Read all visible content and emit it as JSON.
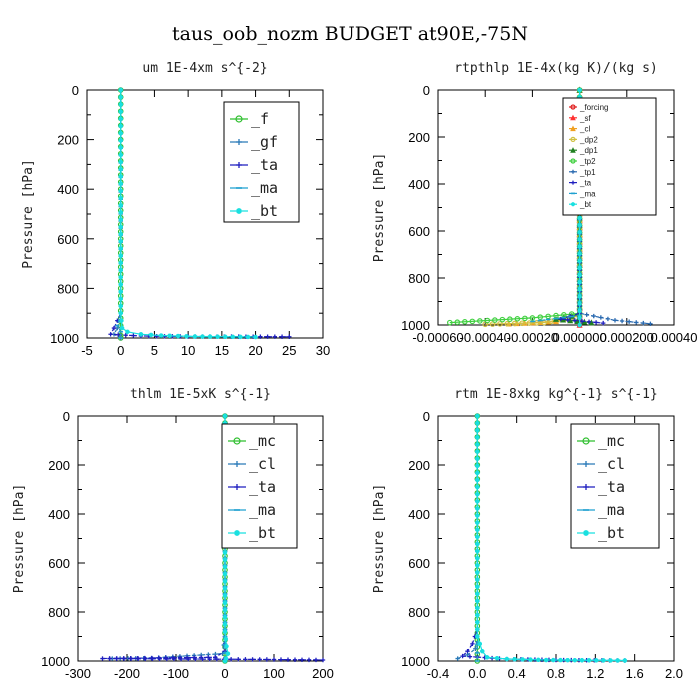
{
  "figure_title": "taus_oob_nozm  BUDGET at90E,-75N",
  "chart_data": [
    {
      "type": "line",
      "title": "um   1E-4xm  s^{-2}",
      "ylabel": "Pressure [hPa]",
      "xlim": [
        -5,
        30
      ],
      "ylim": [
        1000,
        0
      ],
      "x_ticks": [
        -5,
        0,
        5,
        10,
        15,
        20,
        25,
        30
      ],
      "x_tick_labels": [
        "-5",
        "0",
        "5",
        "10",
        "15",
        "20",
        "25",
        "30"
      ],
      "y_ticks": [
        0,
        200,
        400,
        600,
        800,
        1000
      ],
      "legend_style": "big",
      "legend_position": "top-right",
      "series": [
        {
          "name": "_f",
          "color": "#2fbf2f",
          "marker": "circle",
          "points": [
            [
              0,
              0
            ],
            [
              0,
              200
            ],
            [
              0,
              400
            ],
            [
              0,
              600
            ],
            [
              0,
              800
            ],
            [
              0,
              950
            ],
            [
              0,
              990
            ],
            [
              0,
              1000
            ]
          ]
        },
        {
          "name": "_gf",
          "color": "#2a7ab8",
          "marker": "plus",
          "points": [
            [
              0,
              0
            ],
            [
              0,
              500
            ],
            [
              0,
              900
            ],
            [
              -0.5,
              960
            ],
            [
              -1,
              985
            ],
            [
              0,
              1000
            ]
          ]
        },
        {
          "name": "_ta",
          "color": "#1f1fbf",
          "marker": "plus",
          "points": [
            [
              0,
              0
            ],
            [
              0,
              900
            ],
            [
              -1,
              960
            ],
            [
              -1.5,
              985
            ],
            [
              3,
              992
            ],
            [
              10,
              994
            ],
            [
              25,
              995
            ]
          ]
        },
        {
          "name": "_ma",
          "color": "#1fa0d0",
          "marker": "dash",
          "points": [
            [
              0,
              0
            ],
            [
              0,
              900
            ],
            [
              -0.5,
              950
            ],
            [
              0,
              975
            ],
            [
              0,
              1000
            ]
          ]
        },
        {
          "name": "_bt",
          "color": "#19e0e0",
          "marker": "star",
          "points": [
            [
              0,
              0
            ],
            [
              0,
              900
            ],
            [
              0.2,
              960
            ],
            [
              1,
              975
            ],
            [
              3,
              985
            ],
            [
              6,
              990
            ],
            [
              11,
              994
            ],
            [
              20,
              996
            ]
          ]
        }
      ]
    },
    {
      "type": "line",
      "title": "rtpthlp   1E-4x(kg K)/(kg s)",
      "ylabel": "Pressure [hPa]",
      "xlim": [
        -0.0006,
        0.0004
      ],
      "ylim": [
        1000,
        0
      ],
      "x_ticks": [
        -0.0006,
        -0.0004,
        -0.0002,
        0,
        0.0002,
        0.0004
      ],
      "x_tick_labels": [
        "-0.00060",
        "-0.00040",
        "-0.00020",
        "0.000000",
        "0.000200",
        "0.00040"
      ],
      "y_ticks": [
        0,
        200,
        400,
        600,
        800,
        1000
      ],
      "legend_style": "small",
      "legend_position": "top-right",
      "series": [
        {
          "name": "_forcing",
          "color": "#e02020",
          "marker": "circle",
          "points": [
            [
              0,
              0
            ],
            [
              0,
              500
            ],
            [
              0,
              1000
            ]
          ]
        },
        {
          "name": "_sf",
          "color": "#ff3030",
          "marker": "triangle",
          "points": [
            [
              0,
              0
            ],
            [
              0,
              1000
            ]
          ]
        },
        {
          "name": "_cl",
          "color": "#f0a020",
          "marker": "triangle",
          "points": [
            [
              0,
              0
            ],
            [
              0,
              950
            ],
            [
              -0.0001,
              985
            ],
            [
              -0.0003,
              995
            ]
          ]
        },
        {
          "name": "_dp2",
          "color": "#d0c040",
          "marker": "circle",
          "points": [
            [
              0,
              0
            ],
            [
              0,
              960
            ],
            [
              -0.00015,
              990
            ],
            [
              -0.0004,
              997
            ]
          ]
        },
        {
          "name": "_dp1",
          "color": "#208020",
          "marker": "triangle",
          "points": [
            [
              0,
              0
            ],
            [
              0,
              955
            ],
            [
              -0.0001,
              975
            ],
            [
              5e-05,
              990
            ]
          ]
        },
        {
          "name": "_tp2",
          "color": "#40d040",
          "marker": "circle",
          "points": [
            [
              0,
              0
            ],
            [
              0,
              950
            ],
            [
              -0.0002,
              970
            ],
            [
              -0.00055,
              990
            ]
          ]
        },
        {
          "name": "_tp1",
          "color": "#2a6ab0",
          "marker": "plus",
          "points": [
            [
              0,
              0
            ],
            [
              0,
              950
            ],
            [
              0.00015,
              980
            ],
            [
              0.0003,
              995
            ]
          ]
        },
        {
          "name": "_ta",
          "color": "#1f1fbf",
          "marker": "plus",
          "points": [
            [
              0,
              0
            ],
            [
              0,
              950
            ],
            [
              -8e-05,
              975
            ],
            [
              0.0001,
              992
            ]
          ]
        },
        {
          "name": "_ma",
          "color": "#1fa0d0",
          "marker": "dash",
          "points": [
            [
              0,
              0
            ],
            [
              0,
              960
            ],
            [
              -0.0002,
              985
            ]
          ]
        },
        {
          "name": "_bt",
          "color": "#19e0e0",
          "marker": "star",
          "points": [
            [
              0,
              0
            ],
            [
              0,
              1000
            ]
          ]
        }
      ]
    },
    {
      "type": "line",
      "title": "thlm   1E-5xK  s^{-1}",
      "ylabel": "Pressure [hPa]",
      "xlim": [
        -300,
        200
      ],
      "ylim": [
        1000,
        0
      ],
      "x_ticks": [
        -300,
        -200,
        -100,
        0,
        100,
        200
      ],
      "x_tick_labels": [
        "-300",
        "-200",
        "-100",
        "0",
        "100",
        "200"
      ],
      "y_ticks": [
        0,
        200,
        400,
        600,
        800,
        1000
      ],
      "legend_style": "big",
      "legend_position": "top-right",
      "series": [
        {
          "name": "_mc",
          "color": "#2fbf2f",
          "marker": "circle",
          "points": [
            [
              0,
              0
            ],
            [
              0,
              400
            ],
            [
              0,
              800
            ],
            [
              0,
              1000
            ]
          ]
        },
        {
          "name": "_cl",
          "color": "#2a7ab8",
          "marker": "plus",
          "points": [
            [
              0,
              0
            ],
            [
              0,
              900
            ],
            [
              -5,
              970
            ],
            [
              -150,
              988
            ],
            [
              -230,
              990
            ]
          ]
        },
        {
          "name": "_ta",
          "color": "#1f1fbf",
          "marker": "plus",
          "points": [
            [
              0,
              0
            ],
            [
              0,
              960
            ],
            [
              -20,
              985
            ],
            [
              -250,
              990
            ],
            [
              100,
              994
            ],
            [
              200,
              996
            ]
          ]
        },
        {
          "name": "_ma",
          "color": "#1fa0d0",
          "marker": "dash",
          "points": [
            [
              0,
              0
            ],
            [
              0,
              900
            ],
            [
              0,
              1000
            ]
          ]
        },
        {
          "name": "_bt",
          "color": "#19e0e0",
          "marker": "star",
          "points": [
            [
              0,
              0
            ],
            [
              0,
              880
            ],
            [
              3,
              940
            ],
            [
              6,
              970
            ],
            [
              2,
              990
            ],
            [
              0,
              1000
            ]
          ]
        }
      ]
    },
    {
      "type": "line",
      "title": "rtm   1E-8xkg  kg^{-1} s^{-1}",
      "ylabel": "Pressure [hPa]",
      "xlim": [
        -0.4,
        2.0
      ],
      "ylim": [
        1000,
        0
      ],
      "x_ticks": [
        -0.4,
        0.0,
        0.4,
        0.8,
        1.2,
        1.6,
        2.0
      ],
      "x_tick_labels": [
        "-0.4",
        "0.0",
        "0.4",
        "0.8",
        "1.2",
        "1.6",
        "2.0"
      ],
      "y_ticks": [
        0,
        200,
        400,
        600,
        800,
        1000
      ],
      "legend_style": "big",
      "legend_position": "top-right",
      "series": [
        {
          "name": "_mc",
          "color": "#2fbf2f",
          "marker": "circle",
          "points": [
            [
              0,
              0
            ],
            [
              0,
              400
            ],
            [
              0,
              800
            ],
            [
              0,
              1000
            ]
          ]
        },
        {
          "name": "_cl",
          "color": "#2a7ab8",
          "marker": "plus",
          "points": [
            [
              0,
              0
            ],
            [
              0,
              900
            ],
            [
              -0.02,
              950
            ],
            [
              -0.1,
              975
            ],
            [
              -0.2,
              990
            ]
          ]
        },
        {
          "name": "_ta",
          "color": "#1f1fbf",
          "marker": "plus",
          "points": [
            [
              0,
              0
            ],
            [
              0,
              870
            ],
            [
              -0.05,
              930
            ],
            [
              -0.1,
              960
            ],
            [
              -0.15,
              980
            ],
            [
              0.3,
              992
            ],
            [
              0.8,
              996
            ],
            [
              1.5,
              998
            ]
          ]
        },
        {
          "name": "_ma",
          "color": "#1fa0d0",
          "marker": "dash",
          "points": [
            [
              0,
              0
            ],
            [
              0,
              900
            ],
            [
              0,
              1000
            ]
          ]
        },
        {
          "name": "_bt",
          "color": "#19e0e0",
          "marker": "star",
          "points": [
            [
              0,
              0
            ],
            [
              0,
              900
            ],
            [
              0.05,
              960
            ],
            [
              0.1,
              985
            ],
            [
              0.3,
              992
            ],
            [
              0.7,
              996
            ],
            [
              1.5,
              998
            ]
          ]
        }
      ]
    }
  ]
}
